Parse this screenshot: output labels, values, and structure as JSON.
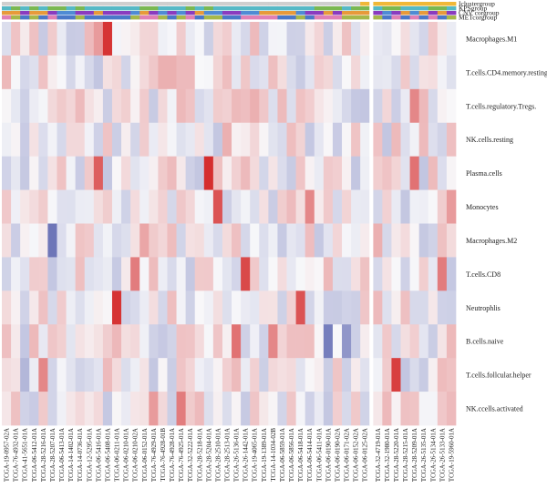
{
  "chart_data": {
    "type": "heatmap",
    "title": "",
    "xlabel": "",
    "ylabel": "",
    "annotation_tracks": [
      "Iclustergroup",
      "KPSgroup",
      "CNV corgroup",
      "METcorgroup"
    ],
    "rows": [
      "Macrophages.M1",
      "T.cells.CD4.memory.resting",
      "T.cells.regulatory.Tregs.",
      "NK.cells.resting",
      "Plasma.cells",
      "Monocytes",
      "Macrophages.M2",
      "T.cells.CD8",
      "Neutrophlis",
      "B.cells.naive",
      "T.cells.follcular.helper",
      "NK.ccells.activated"
    ],
    "column_labels": [
      "TCGA-19-0957-02A",
      "TCGA-76-4932-01A",
      "TCGA-41-5651-01A",
      "TCGA-06-5412-01A",
      "TCGA-28-5216-01A",
      "TCGA-28-5207-01A",
      "TCGA-06-5413-01A",
      "TCGA-14-1402-01A",
      "TCGA-14-0736-01A",
      "TCGA-12-5295-01A",
      "TCGA-06-5416-01A",
      "TCGA-06-5408-01A",
      "TCGA-06-0211-01A",
      "TCGA-06-0210-01A",
      "TCGA-06-0210-02A",
      "TCGA-06-0152-01A",
      "TCGA-76-4929-01A",
      "TCGA-76-4928-01B",
      "TCGA-76-4928-01A",
      "TCGA-76-4925-01A",
      "TCGA-32-5222-01A",
      "TCGA-28-5218-01A",
      "TCGA-28-5204-01A",
      "TCGA-28-2510-01A",
      "TCGA-28-2513-01A",
      "TCGA-26-5136-01A",
      "TCGA-26-1442-01A",
      "TCGA-19-4065-01A",
      "TCGA-19-1389-01A",
      "TCGA-14-1034-02B",
      "TCGA-06-5859-01A",
      "TCGA-06-5856-01A",
      "TCGA-06-5418-01A",
      "TCGA-06-5414-01A",
      "TCGA-06-5411-01A",
      "TCGA-06-0190-01A",
      "TCGA-06-0190-02A",
      "TCGA-06-0171-02A",
      "TCGA-06-0152-02A",
      "TCGA-06-0125-02A",
      "TCGA-32-4719-01A",
      "TCGA-32-1980-01A",
      "TCGA-28-5220-01A",
      "TCGA-28-5215-01A",
      "TCGA-28-5209-01A",
      "TCGA-26-5135-01A",
      "TCGA-26-5134-01A",
      "TCGA-26-5133-01A",
      "TCGA-19-5960-01A"
    ],
    "column_gap_after": 39,
    "color_scale": {
      "low": "#4b55a8",
      "mid": "#f8f8fa",
      "high": "#d42a2a",
      "domain": [
        -1,
        1
      ]
    },
    "track_colors": {
      "Iclustergroup": [
        "#cfcfcf",
        "#f0b838"
      ],
      "KPSgroup": [
        "#55b9c6",
        "#7ab851"
      ],
      "CNV corgroup": [
        "#e79a3a",
        "#8a3bbf",
        "#4f8bd4"
      ],
      "METcorgroup": [
        "#e080b5",
        "#a6b84a",
        "#4a78c8"
      ]
    }
  }
}
